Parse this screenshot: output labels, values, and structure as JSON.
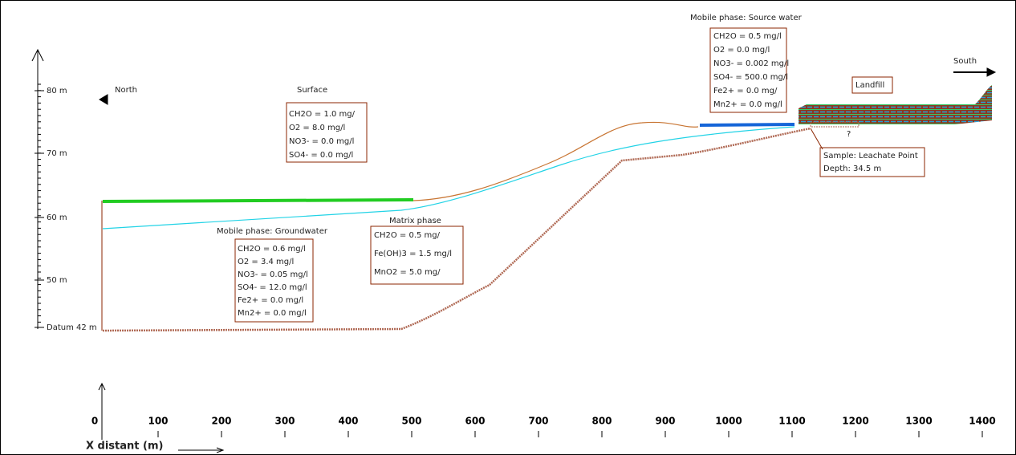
{
  "labels": {
    "north": "North",
    "south": "South",
    "landfill": "Landfill",
    "x_axis_title": "X distant (m)",
    "question": "?"
  },
  "vertical_axis": [
    "80 m",
    "70 m",
    "60 m",
    "50 m",
    "Datum 42 m"
  ],
  "x_ticks": [
    "0",
    "100",
    "200",
    "300",
    "400",
    "500",
    "600",
    "700",
    "800",
    "900",
    "1000",
    "1100",
    "1200",
    "1300",
    "1400"
  ],
  "boxes": [
    {
      "title": "Mobile phase: Source water",
      "lines": [
        "CH2O = 0.5 mg/l",
        "O2 = 0.0 mg/l",
        "NO3- = 0.002 mg/l",
        "SO4- = 500.0 mg/l",
        "Fe2+ = 0.0 mg/",
        "Mn2+ = 0.0 mg/l"
      ]
    },
    {
      "title": "Surface",
      "lines": [
        "CH2O = 1.0 mg/",
        "O2 = 8.0 mg/l",
        "NO3- = 0.0 mg/l",
        "SO4- = 0.0 mg/l"
      ]
    },
    {
      "title": "Mobile phase: Groundwater",
      "lines": [
        "CH2O = 0.6 mg/l",
        "O2 = 3.4 mg/l",
        "NO3- = 0.05 mg/l",
        "SO4- = 12.0 mg/l",
        "Fe2+ = 0.0 mg/l",
        "Mn2+ = 0.0 mg/l"
      ]
    },
    {
      "title": "Matrix phase",
      "lines": [
        "CH2O = 0.5 mg/",
        "Fe(OH)3 = 1.5 mg/l",
        "MnO2 = 5.0 mg/"
      ]
    },
    {
      "lines": [
        "Sample: Leachate Point",
        "Depth: 34.5 m"
      ]
    }
  ]
}
